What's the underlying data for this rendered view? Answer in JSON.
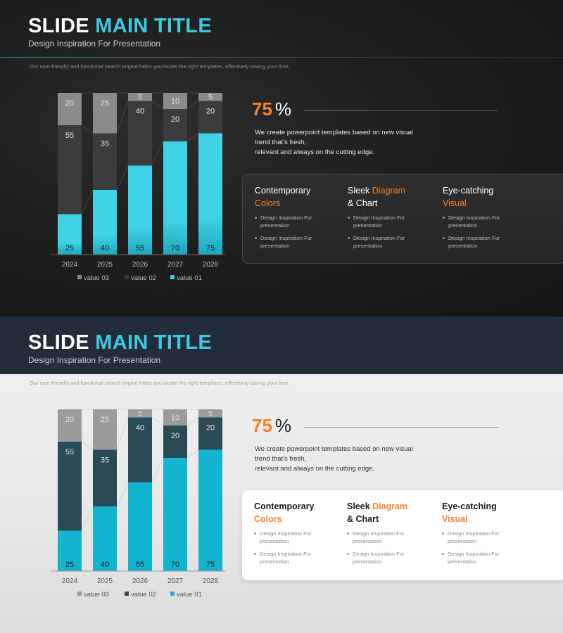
{
  "slides": [
    {
      "theme": "dark",
      "title": {
        "part1": "SLIDE",
        "part2": "MAIN TITLE"
      },
      "subtitle": "Design Inspiration For Presentation",
      "description": "Our user-friendly and functional search engine helps you locate the right templates, effectively saving your time.",
      "stat": {
        "value": "75",
        "symbol": "%"
      },
      "body": [
        "We create powerpoint templates based on new visual",
        "trend that's fresh,",
        "relevant and always on the cutting edge."
      ],
      "columns": [
        {
          "line1": "Contemporary",
          "line1_hl": "",
          "line2": "",
          "line2_hl": "Colors",
          "bullets": [
            "Design Inspiration For presentation",
            "Design Inspiration For presentation"
          ]
        },
        {
          "line1": "Sleek ",
          "line1_hl": "Diagram",
          "line2": "& Chart",
          "line2_hl": "",
          "bullets": [
            "Design Inspiration For presentation",
            "Design Inspiration For presentation"
          ]
        },
        {
          "line1": "Eye-catching",
          "line1_hl": "",
          "line2": "",
          "line2_hl": "Visual",
          "bullets": [
            "Design Inspiration For presentation",
            "Design Inspiration For presentation"
          ]
        }
      ],
      "colors": {
        "value01": "#3fd2e6",
        "value02": "#3c3c3c",
        "value03": "#8a8a8a",
        "accent": "#f5822a",
        "title_accent": "#3fc9e0"
      }
    },
    {
      "theme": "light",
      "title": {
        "part1": "SLIDE",
        "part2": "MAIN TITLE"
      },
      "subtitle": "Design Inspiration For Presentation",
      "description": "Our user-friendly and functional search engine helps you locate the right templates, effectively saving your time.",
      "stat": {
        "value": "75",
        "symbol": "%"
      },
      "body": [
        "We create powerpoint templates based on new visual",
        "trend that's fresh,",
        "relevant and always on the cutting edge."
      ],
      "columns": [
        {
          "line1": "Contemporary",
          "line1_hl": "",
          "line2": "",
          "line2_hl": "Colors",
          "bullets": [
            "Design Inspiration For presentation",
            "Design Inspiration For presentation"
          ]
        },
        {
          "line1": "Sleek ",
          "line1_hl": "Diagram",
          "line2": "& Chart",
          "line2_hl": "",
          "bullets": [
            "Design Inspiration For presentation",
            "Design Inspiration For presentation"
          ]
        },
        {
          "line1": "Eye-catching",
          "line1_hl": "",
          "line2": "",
          "line2_hl": "Visual",
          "bullets": [
            "Design Inspiration For presentation",
            "Design Inspiration For presentation"
          ]
        }
      ],
      "colors": {
        "value01": "#12b4d0",
        "value02": "#2a4a55",
        "value03": "#9b9b9b",
        "accent": "#f5822a",
        "title_accent": "#3fc9e0"
      }
    }
  ],
  "chart_data": [
    {
      "type": "bar",
      "stacked": true,
      "categories": [
        "2024",
        "2025",
        "2026",
        "2027",
        "2028"
      ],
      "series": [
        {
          "name": "value 01",
          "values": [
            25,
            40,
            55,
            70,
            75
          ]
        },
        {
          "name": "value 02",
          "values": [
            55,
            35,
            40,
            20,
            20
          ]
        },
        {
          "name": "value 03",
          "values": [
            20,
            25,
            5,
            10,
            5
          ]
        }
      ],
      "ylim": [
        0,
        100
      ],
      "legend": "bottom",
      "grid": false
    },
    {
      "type": "bar",
      "stacked": true,
      "categories": [
        "2024",
        "2025",
        "2026",
        "2027",
        "2028"
      ],
      "series": [
        {
          "name": "value 01",
          "values": [
            25,
            40,
            55,
            70,
            75
          ]
        },
        {
          "name": "value 02",
          "values": [
            55,
            35,
            40,
            20,
            20
          ]
        },
        {
          "name": "value 03",
          "values": [
            20,
            25,
            5,
            10,
            5
          ]
        }
      ],
      "ylim": [
        0,
        100
      ],
      "legend": "bottom",
      "grid": false
    }
  ]
}
